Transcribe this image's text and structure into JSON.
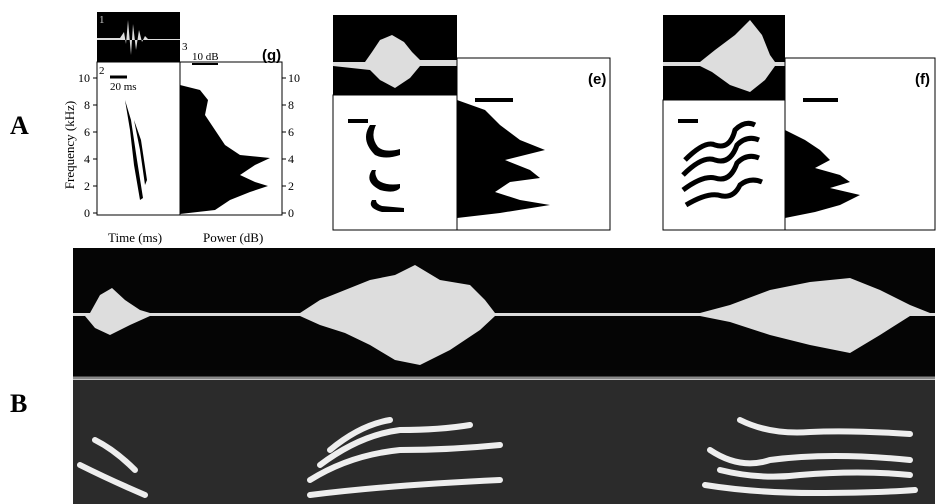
{
  "panels": {
    "a": "A",
    "b": "B"
  },
  "panel_g": {
    "tag": "(g)",
    "waveform_number": "1",
    "spectrogram_number": "2",
    "spectrum_number": "3",
    "time_scale": "20 ms",
    "power_scale": "10 dB",
    "y_label": "Frequency (kHz)",
    "x_label_left": "Time (ms)",
    "x_label_right": "Power (dB)",
    "yticks": [
      0,
      2,
      4,
      6,
      8,
      10
    ]
  },
  "panel_e": {
    "tag": "(e)"
  },
  "panel_f": {
    "tag": "(f)"
  }
}
